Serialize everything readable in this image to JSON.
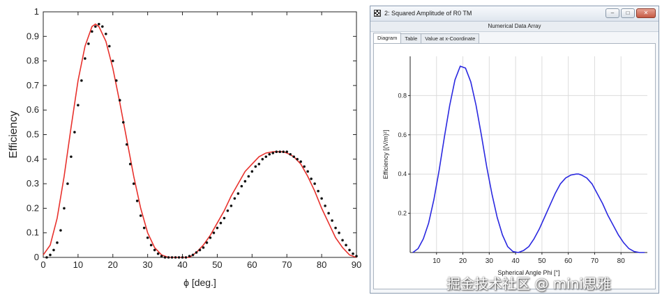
{
  "chart_data": [
    {
      "type": "scatter",
      "xlabel": "ϕ [deg.]",
      "ylabel": "Efficiency",
      "xlim": [
        0,
        90
      ],
      "ylim": [
        0,
        1
      ],
      "x_ticks": [
        "0",
        "10",
        "20",
        "30",
        "40",
        "50",
        "60",
        "70",
        "80",
        "90"
      ],
      "y_ticks": [
        "0",
        "0.1",
        "0.2",
        "0.3",
        "0.4",
        "0.5",
        "0.6",
        "0.7",
        "0.8",
        "0.9",
        "1"
      ],
      "grid": false,
      "series": [
        {
          "style": "line",
          "color": "#e8312c",
          "x": [
            0,
            2,
            4,
            6,
            8,
            10,
            12,
            14,
            15,
            16,
            18,
            20,
            22,
            24,
            26,
            28,
            30,
            32,
            34,
            36,
            38,
            40,
            41,
            42,
            44,
            46,
            48,
            50,
            52,
            54,
            56,
            58,
            60,
            62,
            64,
            66,
            68,
            69,
            70,
            72,
            74,
            76,
            78,
            80,
            82,
            84,
            86,
            88,
            90
          ],
          "y": [
            0.01,
            0.05,
            0.16,
            0.33,
            0.53,
            0.72,
            0.86,
            0.94,
            0.95,
            0.94,
            0.88,
            0.77,
            0.63,
            0.48,
            0.33,
            0.2,
            0.1,
            0.04,
            0.01,
            0.0,
            0.0,
            0.0,
            0.0,
            0.0,
            0.02,
            0.05,
            0.09,
            0.14,
            0.19,
            0.25,
            0.3,
            0.35,
            0.38,
            0.41,
            0.425,
            0.43,
            0.43,
            0.43,
            0.425,
            0.41,
            0.38,
            0.33,
            0.27,
            0.2,
            0.14,
            0.08,
            0.04,
            0.01,
            0.0
          ]
        },
        {
          "style": "dots",
          "color": "#111111",
          "x": [
            1,
            2,
            3,
            4,
            5,
            6,
            7,
            8,
            9,
            10,
            11,
            12,
            13,
            14,
            15,
            16,
            17,
            18,
            19,
            20,
            21,
            22,
            23,
            24,
            25,
            26,
            27,
            28,
            29,
            30,
            31,
            32,
            33,
            34,
            35,
            36,
            37,
            38,
            39,
            40,
            41,
            42,
            43,
            44,
            45,
            46,
            47,
            48,
            49,
            50,
            51,
            52,
            53,
            54,
            55,
            56,
            57,
            58,
            59,
            60,
            61,
            62,
            63,
            64,
            65,
            66,
            67,
            68,
            69,
            70,
            71,
            72,
            73,
            74,
            75,
            76,
            77,
            78,
            79,
            80,
            81,
            82,
            83,
            84,
            85,
            86,
            87,
            88,
            89,
            90
          ],
          "y": [
            0.0,
            0.01,
            0.03,
            0.06,
            0.11,
            0.2,
            0.3,
            0.41,
            0.51,
            0.62,
            0.72,
            0.81,
            0.87,
            0.92,
            0.94,
            0.95,
            0.94,
            0.91,
            0.86,
            0.8,
            0.72,
            0.64,
            0.55,
            0.46,
            0.38,
            0.3,
            0.23,
            0.17,
            0.12,
            0.08,
            0.05,
            0.03,
            0.015,
            0.005,
            0.0,
            0.0,
            0.0,
            0.0,
            0.0,
            0.0,
            0.0,
            0.005,
            0.01,
            0.02,
            0.03,
            0.04,
            0.06,
            0.08,
            0.1,
            0.12,
            0.14,
            0.16,
            0.19,
            0.21,
            0.24,
            0.26,
            0.29,
            0.31,
            0.33,
            0.35,
            0.37,
            0.38,
            0.4,
            0.41,
            0.42,
            0.425,
            0.43,
            0.43,
            0.43,
            0.43,
            0.42,
            0.41,
            0.4,
            0.39,
            0.37,
            0.35,
            0.32,
            0.3,
            0.27,
            0.24,
            0.21,
            0.18,
            0.15,
            0.12,
            0.1,
            0.07,
            0.05,
            0.03,
            0.015,
            0.005
          ]
        }
      ]
    },
    {
      "type": "line",
      "xlabel": "Spherical Angle Phi [°]",
      "ylabel": "Efficiency [(V/m)²]",
      "xlim": [
        0,
        90
      ],
      "ylim": [
        0,
        1
      ],
      "x_ticks": [
        "10",
        "20",
        "30",
        "40",
        "50",
        "60",
        "70",
        "80"
      ],
      "y_ticks": [
        "0.2",
        "0.4",
        "0.6",
        "0.8"
      ],
      "grid": true,
      "series": [
        {
          "color": "#2a28e0",
          "x": [
            1,
            3,
            5,
            7,
            9,
            11,
            13,
            15,
            17,
            19,
            21,
            23,
            25,
            27,
            29,
            31,
            33,
            35,
            37,
            39,
            41,
            43,
            45,
            47,
            49,
            51,
            53,
            55,
            57,
            59,
            61,
            63,
            64,
            65,
            67,
            69,
            71,
            73,
            75,
            77,
            79,
            81,
            83,
            85,
            87,
            89
          ],
          "y": [
            0.0,
            0.02,
            0.07,
            0.15,
            0.27,
            0.42,
            0.59,
            0.75,
            0.88,
            0.95,
            0.94,
            0.87,
            0.75,
            0.6,
            0.44,
            0.3,
            0.18,
            0.09,
            0.03,
            0.005,
            0.0,
            0.01,
            0.03,
            0.07,
            0.12,
            0.18,
            0.24,
            0.3,
            0.35,
            0.38,
            0.395,
            0.4,
            0.4,
            0.395,
            0.38,
            0.35,
            0.3,
            0.25,
            0.19,
            0.14,
            0.09,
            0.05,
            0.02,
            0.005,
            0.0,
            0.0
          ]
        }
      ]
    }
  ],
  "window": {
    "title": "2: Squared Amplitude of R0 TM",
    "panel_title": "Numerical Data Array",
    "tabs": [
      "Diagram",
      "Table",
      "Value at x-Coordinate"
    ],
    "minimize": "–",
    "maximize": "□",
    "close": "✕"
  },
  "watermark": "掘金技术社区 @ mini思雅"
}
